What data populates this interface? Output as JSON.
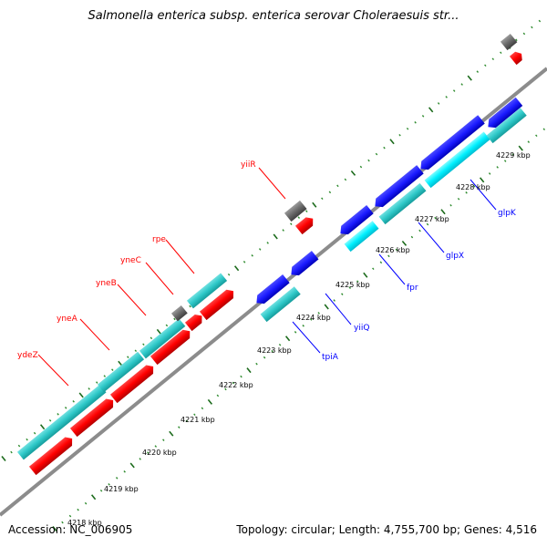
{
  "title": "Salmonella enterica subsp. enterica serovar Choleraesuis str...",
  "footer": {
    "accession": "Accession: NC_006905",
    "summary": "Topology: circular; Length: 4,755,700 bp; Genes: 4,516"
  },
  "colors": {
    "backbone": "#8c8c8c",
    "tick_dots": "#2e8b2e",
    "tick_major": "#1c6b1c",
    "forward_red": "#ff0000",
    "forward_red_shade": "#c40000",
    "forward_cyan": "#2ec8c8",
    "forward_gray": "#6a6a6a",
    "reverse_blue": "#1a1aff",
    "reverse_cyan": "#00f0ff",
    "label_red": "#ff0000",
    "label_blue": "#0000ff"
  },
  "scale": {
    "kbp_labels": [
      "4218 kbp",
      "4219 kbp",
      "4220 kbp",
      "4221 kbp",
      "4222 kbp",
      "4223 kbp",
      "4224 kbp",
      "4225 kbp",
      "4226 kbp",
      "4227 kbp",
      "4228 kbp",
      "4229 kbp"
    ]
  },
  "gene_labels": {
    "forward": [
      "ydeZ",
      "yneA",
      "yneB",
      "yneC",
      "rpe",
      "yiiR"
    ],
    "reverse": [
      "tpiA",
      "yiiQ",
      "fpr",
      "glpX",
      "glpK"
    ]
  }
}
